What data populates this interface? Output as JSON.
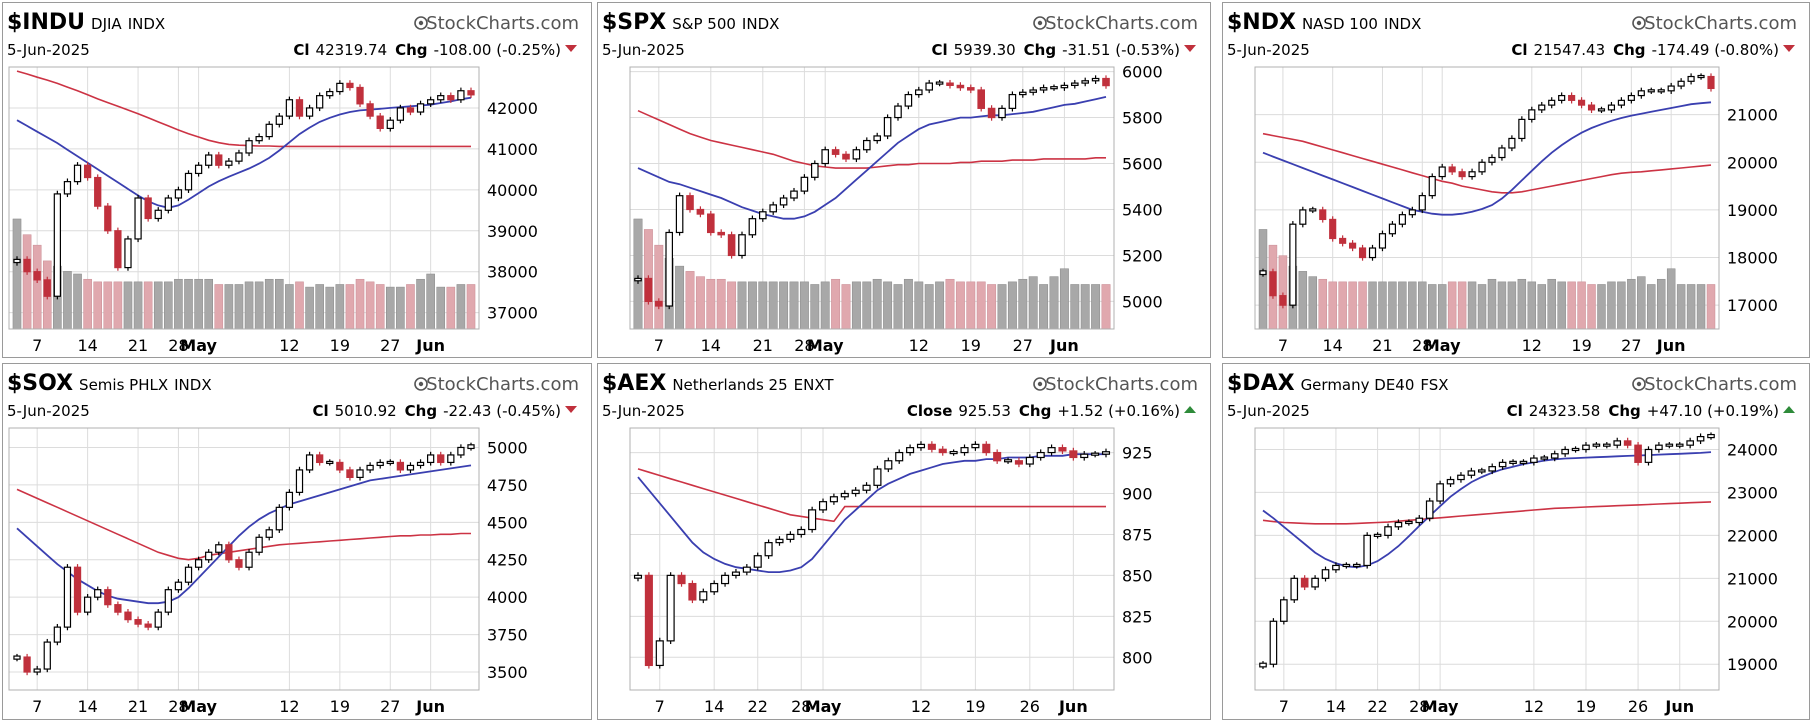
{
  "brand": "StockCharts.com",
  "colors": {
    "up": "#000000",
    "down": "#c0303c",
    "sma_short": "#3a3fb0",
    "sma_long": "#cc3344",
    "vol_up": "#a8a8a8",
    "vol_down": "#e0a8ae",
    "grid": "#dcdcdc"
  },
  "chart_data": [
    {
      "type": "candlestick",
      "symbol": "$INDU",
      "name": "DJIA",
      "exchange": "INDX",
      "date": "5-Jun-2025",
      "close_label": "Cl",
      "close": "42319.74",
      "chg_label": "Chg",
      "chg": "-108.00 (-0.25%)",
      "direction": "down",
      "yticks": [
        37000,
        38000,
        39000,
        40000,
        41000,
        42000
      ],
      "yrange": [
        36600,
        43000
      ],
      "xticks": [
        "7",
        "14",
        "21",
        "28",
        "May",
        "12",
        "19",
        "27",
        "Jun"
      ],
      "bold_xticks": [
        "May",
        "Jun"
      ],
      "xtick_index": [
        2,
        7,
        12,
        16,
        18,
        27,
        32,
        37,
        41
      ],
      "n_bars": 46,
      "closes": [
        38300,
        38000,
        37800,
        37400,
        39900,
        40200,
        40600,
        40300,
        39600,
        39000,
        38100,
        38800,
        39800,
        39300,
        39500,
        39800,
        40000,
        40400,
        40600,
        40850,
        40600,
        40700,
        40900,
        41200,
        41300,
        41600,
        41800,
        42200,
        41800,
        42000,
        42300,
        42400,
        42600,
        42500,
        42100,
        41800,
        41500,
        41700,
        42000,
        41900,
        42100,
        42200,
        42300,
        42200,
        42420,
        42320
      ],
      "sma50": [
        42900,
        42830,
        42750,
        42680,
        42600,
        42510,
        42420,
        42320,
        42220,
        42130,
        42040,
        41950,
        41860,
        41760,
        41660,
        41560,
        41460,
        41370,
        41290,
        41210,
        41150,
        41110,
        41090,
        41080,
        41070,
        41070,
        41060,
        41060,
        41060,
        41060,
        41060,
        41060,
        41060,
        41060,
        41060,
        41060,
        41060,
        41060,
        41060,
        41060,
        41060,
        41060,
        41060,
        41060,
        41060,
        41060
      ],
      "sma20": [
        41700,
        41560,
        41420,
        41280,
        41140,
        40980,
        40820,
        40660,
        40500,
        40340,
        40180,
        40020,
        39860,
        39720,
        39620,
        39560,
        39620,
        39760,
        39920,
        40080,
        40210,
        40320,
        40420,
        40520,
        40640,
        40780,
        40960,
        41160,
        41360,
        41520,
        41660,
        41760,
        41840,
        41900,
        41940,
        41960,
        41980,
        42000,
        42020,
        42040,
        42060,
        42080,
        42120,
        42160,
        42210,
        42250
      ],
      "volume": [
        0.42,
        0.36,
        0.32,
        0.26,
        0.24,
        0.22,
        0.21,
        0.19,
        0.18,
        0.18,
        0.18,
        0.18,
        0.18,
        0.18,
        0.18,
        0.18,
        0.19,
        0.19,
        0.19,
        0.19,
        0.17,
        0.17,
        0.17,
        0.18,
        0.18,
        0.19,
        0.19,
        0.17,
        0.18,
        0.16,
        0.17,
        0.16,
        0.17,
        0.17,
        0.19,
        0.18,
        0.17,
        0.16,
        0.16,
        0.17,
        0.19,
        0.21,
        0.16,
        0.16,
        0.17,
        0.17
      ]
    },
    {
      "type": "candlestick",
      "symbol": "$SPX",
      "name": "S&P 500",
      "exchange": "INDX",
      "date": "5-Jun-2025",
      "close_label": "Cl",
      "close": "5939.30",
      "chg_label": "Chg",
      "chg": "-31.51 (-0.53%)",
      "direction": "down",
      "yticks": [
        5000,
        5200,
        5400,
        5600,
        5800,
        6000
      ],
      "yrange": [
        4880,
        6020
      ],
      "xticks": [
        "7",
        "14",
        "21",
        "28",
        "May",
        "12",
        "19",
        "27",
        "Jun"
      ],
      "bold_xticks": [
        "May",
        "Jun"
      ],
      "xtick_index": [
        2,
        7,
        12,
        16,
        18,
        27,
        32,
        37,
        41
      ],
      "n_bars": 46,
      "closes": [
        5100,
        5000,
        4980,
        5300,
        5460,
        5400,
        5380,
        5300,
        5290,
        5200,
        5290,
        5360,
        5390,
        5420,
        5450,
        5480,
        5540,
        5600,
        5660,
        5640,
        5620,
        5660,
        5700,
        5720,
        5800,
        5850,
        5900,
        5920,
        5950,
        5950,
        5940,
        5930,
        5920,
        5840,
        5800,
        5840,
        5900,
        5910,
        5920,
        5930,
        5930,
        5940,
        5950,
        5960,
        5970,
        5939
      ],
      "sma50": [
        5830,
        5810,
        5790,
        5770,
        5750,
        5730,
        5715,
        5700,
        5690,
        5680,
        5670,
        5660,
        5650,
        5640,
        5625,
        5610,
        5600,
        5590,
        5585,
        5580,
        5580,
        5580,
        5580,
        5585,
        5590,
        5595,
        5595,
        5600,
        5600,
        5600,
        5600,
        5605,
        5605,
        5610,
        5610,
        5610,
        5615,
        5615,
        5615,
        5620,
        5620,
        5620,
        5620,
        5620,
        5625,
        5625
      ],
      "sma20": [
        5580,
        5560,
        5540,
        5520,
        5510,
        5495,
        5480,
        5465,
        5450,
        5430,
        5410,
        5395,
        5380,
        5370,
        5360,
        5360,
        5370,
        5390,
        5420,
        5450,
        5490,
        5530,
        5570,
        5610,
        5650,
        5690,
        5720,
        5750,
        5770,
        5780,
        5790,
        5800,
        5800,
        5805,
        5810,
        5810,
        5815,
        5820,
        5825,
        5835,
        5845,
        5855,
        5860,
        5870,
        5880,
        5890
      ],
      "volume": [
        0.42,
        0.38,
        0.32,
        0.27,
        0.24,
        0.22,
        0.2,
        0.19,
        0.19,
        0.18,
        0.18,
        0.18,
        0.18,
        0.18,
        0.18,
        0.18,
        0.18,
        0.17,
        0.18,
        0.19,
        0.17,
        0.18,
        0.18,
        0.19,
        0.18,
        0.17,
        0.19,
        0.18,
        0.17,
        0.18,
        0.19,
        0.18,
        0.18,
        0.18,
        0.17,
        0.17,
        0.18,
        0.19,
        0.2,
        0.17,
        0.2,
        0.23,
        0.17,
        0.17,
        0.17,
        0.17
      ]
    },
    {
      "type": "candlestick",
      "symbol": "$NDX",
      "name": "NASD 100",
      "exchange": "INDX",
      "date": "5-Jun-2025",
      "close_label": "Cl",
      "close": "21547.43",
      "chg_label": "Chg",
      "chg": "-174.49 (-0.80%)",
      "direction": "down",
      "yticks": [
        17000,
        18000,
        19000,
        20000,
        21000
      ],
      "yrange": [
        16500,
        22000
      ],
      "xticks": [
        "7",
        "14",
        "21",
        "28",
        "May",
        "12",
        "19",
        "27",
        "Jun"
      ],
      "bold_xticks": [
        "May",
        "Jun"
      ],
      "xtick_index": [
        2,
        7,
        12,
        16,
        18,
        27,
        32,
        37,
        41
      ],
      "n_bars": 46,
      "closes": [
        17700,
        17200,
        17000,
        18700,
        19000,
        19000,
        18800,
        18400,
        18300,
        18200,
        18000,
        18200,
        18500,
        18700,
        18900,
        19000,
        19300,
        19700,
        19900,
        19800,
        19700,
        19800,
        20000,
        20100,
        20300,
        20500,
        20900,
        21100,
        21200,
        21300,
        21400,
        21300,
        21200,
        21100,
        21100,
        21200,
        21300,
        21400,
        21500,
        21500,
        21500,
        21600,
        21700,
        21800,
        21800,
        21550
      ],
      "sma50": [
        20600,
        20560,
        20520,
        20480,
        20440,
        20380,
        20320,
        20260,
        20200,
        20140,
        20080,
        20020,
        19960,
        19900,
        19840,
        19780,
        19720,
        19660,
        19600,
        19560,
        19500,
        19460,
        19420,
        19380,
        19360,
        19360,
        19380,
        19420,
        19460,
        19500,
        19540,
        19580,
        19620,
        19660,
        19700,
        19740,
        19770,
        19790,
        19800,
        19820,
        19840,
        19860,
        19880,
        19900,
        19920,
        19940
      ],
      "sma20": [
        20200,
        20120,
        20040,
        19960,
        19880,
        19800,
        19720,
        19640,
        19560,
        19480,
        19400,
        19320,
        19240,
        19160,
        19080,
        19000,
        18960,
        18920,
        18900,
        18900,
        18920,
        18960,
        19020,
        19100,
        19240,
        19420,
        19620,
        19820,
        20020,
        20200,
        20360,
        20500,
        20620,
        20720,
        20800,
        20870,
        20930,
        20980,
        21020,
        21060,
        21100,
        21140,
        21180,
        21220,
        21240,
        21260
      ],
      "volume": [
        0.38,
        0.32,
        0.28,
        0.24,
        0.22,
        0.2,
        0.19,
        0.18,
        0.18,
        0.18,
        0.18,
        0.18,
        0.18,
        0.18,
        0.18,
        0.18,
        0.18,
        0.17,
        0.17,
        0.18,
        0.18,
        0.18,
        0.17,
        0.19,
        0.18,
        0.18,
        0.19,
        0.18,
        0.17,
        0.19,
        0.18,
        0.18,
        0.18,
        0.17,
        0.17,
        0.18,
        0.18,
        0.19,
        0.2,
        0.17,
        0.19,
        0.23,
        0.17,
        0.17,
        0.17,
        0.17
      ]
    },
    {
      "type": "candlestick",
      "symbol": "$SOX",
      "name": "Semis PHLX",
      "exchange": "INDX",
      "date": "5-Jun-2025",
      "close_label": "Cl",
      "close": "5010.92",
      "chg_label": "Chg",
      "chg": "-22.43 (-0.45%)",
      "direction": "down",
      "yticks": [
        3500,
        3750,
        4000,
        4250,
        4500,
        4750,
        5000
      ],
      "yrange": [
        3380,
        5130
      ],
      "xticks": [
        "7",
        "14",
        "21",
        "28",
        "May",
        "12",
        "19",
        "27",
        "Jun"
      ],
      "bold_xticks": [
        "May",
        "Jun"
      ],
      "xtick_index": [
        2,
        7,
        12,
        16,
        18,
        27,
        32,
        37,
        41
      ],
      "n_bars": 46,
      "closes": [
        3600,
        3500,
        3520,
        3700,
        3800,
        4200,
        3900,
        4000,
        4050,
        3950,
        3900,
        3850,
        3820,
        3800,
        3900,
        4050,
        4100,
        4200,
        4250,
        4300,
        4350,
        4250,
        4200,
        4300,
        4400,
        4450,
        4600,
        4700,
        4850,
        4950,
        4900,
        4900,
        4850,
        4800,
        4850,
        4880,
        4900,
        4900,
        4850,
        4880,
        4900,
        4950,
        4900,
        4950,
        5000,
        5011
      ],
      "sma50": [
        4720,
        4690,
        4660,
        4630,
        4600,
        4570,
        4540,
        4510,
        4480,
        4450,
        4420,
        4390,
        4360,
        4330,
        4300,
        4280,
        4260,
        4250,
        4260,
        4280,
        4290,
        4300,
        4310,
        4320,
        4330,
        4340,
        4350,
        4355,
        4360,
        4365,
        4370,
        4375,
        4380,
        4385,
        4390,
        4395,
        4400,
        4405,
        4410,
        4410,
        4415,
        4415,
        4420,
        4420,
        4425,
        4425
      ],
      "sma20": [
        4460,
        4400,
        4340,
        4280,
        4220,
        4170,
        4120,
        4080,
        4040,
        4010,
        3990,
        3980,
        3970,
        3960,
        3960,
        3970,
        4000,
        4060,
        4130,
        4200,
        4270,
        4340,
        4410,
        4470,
        4520,
        4560,
        4590,
        4620,
        4640,
        4660,
        4680,
        4700,
        4720,
        4740,
        4760,
        4780,
        4790,
        4800,
        4810,
        4820,
        4830,
        4840,
        4850,
        4860,
        4870,
        4880
      ]
    },
    {
      "type": "candlestick",
      "symbol": "$AEX",
      "name": "Netherlands 25",
      "exchange": "ENXT",
      "date": "5-Jun-2025",
      "close_label": "Close",
      "close": "925.53",
      "chg_label": "Chg",
      "chg": "+1.52 (+0.16%)",
      "direction": "up",
      "yticks": [
        800,
        825,
        850,
        875,
        900,
        925
      ],
      "yrange": [
        780,
        940
      ],
      "xticks": [
        "7",
        "14",
        "22",
        "28",
        "May",
        "12",
        "19",
        "26",
        "Jun"
      ],
      "bold_xticks": [
        "May",
        "Jun"
      ],
      "xtick_index": [
        2,
        7,
        11,
        15,
        17,
        26,
        31,
        36,
        40
      ],
      "n_bars": 44,
      "closes": [
        850,
        795,
        810,
        850,
        845,
        835,
        840,
        845,
        850,
        852,
        855,
        862,
        870,
        872,
        875,
        878,
        890,
        895,
        898,
        900,
        902,
        905,
        915,
        920,
        925,
        928,
        930,
        927,
        925,
        925,
        928,
        930,
        925,
        920,
        920,
        918,
        922,
        925,
        928,
        926,
        922,
        924,
        924,
        925.5
      ],
      "sma50": [
        915,
        913,
        911,
        909,
        907,
        905,
        903,
        901,
        899,
        897,
        895,
        893,
        891,
        889,
        887,
        886,
        885,
        884,
        883,
        892,
        892,
        892,
        892,
        892,
        892,
        892,
        892,
        892,
        892,
        892,
        892,
        892,
        892,
        892,
        892,
        892,
        892,
        892,
        892,
        892,
        892,
        892,
        892,
        892
      ],
      "sma20": [
        910,
        902,
        894,
        886,
        878,
        870,
        864,
        860,
        857,
        855,
        854,
        853,
        852,
        852,
        853,
        855,
        860,
        868,
        876,
        884,
        890,
        896,
        902,
        906,
        909,
        912,
        914,
        916,
        918,
        919,
        920,
        920,
        921,
        921,
        922,
        922,
        922,
        923,
        923,
        923,
        924,
        924,
        924,
        924
      ]
    },
    {
      "type": "candlestick",
      "symbol": "$DAX",
      "name": "Germany DE40",
      "exchange": "FSX",
      "date": "5-Jun-2025",
      "close_label": "Cl",
      "close": "24323.58",
      "chg_label": "Chg",
      "chg": "+47.10 (+0.19%)",
      "direction": "up",
      "yticks": [
        19000,
        20000,
        21000,
        22000,
        23000,
        24000
      ],
      "yrange": [
        18400,
        24500
      ],
      "xticks": [
        "7",
        "14",
        "22",
        "28",
        "May",
        "12",
        "19",
        "26",
        "Jun"
      ],
      "bold_xticks": [
        "May",
        "Jun"
      ],
      "xtick_index": [
        2,
        7,
        11,
        15,
        17,
        26,
        31,
        36,
        40
      ],
      "n_bars": 44,
      "closes": [
        19000,
        20000,
        20500,
        21000,
        20800,
        21000,
        21200,
        21300,
        21300,
        21300,
        22000,
        22000,
        22200,
        22300,
        22300,
        22400,
        22800,
        23200,
        23300,
        23400,
        23500,
        23500,
        23600,
        23700,
        23700,
        23700,
        23800,
        23800,
        23900,
        24000,
        24000,
        24100,
        24100,
        24100,
        24200,
        24100,
        23700,
        24000,
        24100,
        24100,
        24100,
        24200,
        24300,
        24324
      ],
      "sma50": [
        22350,
        22320,
        22300,
        22290,
        22280,
        22270,
        22270,
        22270,
        22270,
        22280,
        22290,
        22300,
        22310,
        22330,
        22350,
        22370,
        22390,
        22410,
        22430,
        22450,
        22470,
        22490,
        22510,
        22530,
        22550,
        22570,
        22590,
        22610,
        22630,
        22640,
        22650,
        22660,
        22670,
        22680,
        22690,
        22700,
        22710,
        22720,
        22730,
        22740,
        22750,
        22760,
        22770,
        22780
      ],
      "sma20": [
        22580,
        22400,
        22200,
        22000,
        21800,
        21600,
        21450,
        21350,
        21280,
        21260,
        21300,
        21400,
        21560,
        21750,
        21980,
        22220,
        22450,
        22680,
        22900,
        23080,
        23240,
        23360,
        23460,
        23540,
        23600,
        23660,
        23700,
        23740,
        23770,
        23790,
        23800,
        23810,
        23820,
        23830,
        23840,
        23850,
        23860,
        23870,
        23880,
        23890,
        23900,
        23910,
        23920,
        23940
      ]
    }
  ]
}
